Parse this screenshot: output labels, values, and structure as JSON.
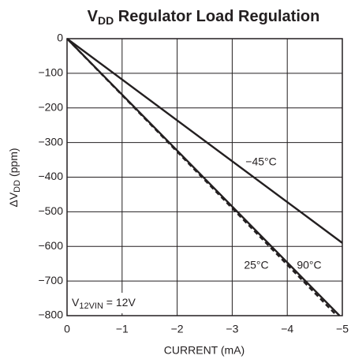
{
  "chart_data": {
    "type": "line",
    "title": [
      "V",
      "DD",
      " Regulator Load Regulation"
    ],
    "ylabel": [
      "ΔV",
      "DD",
      " (ppm)"
    ],
    "xlabel": "CURRENT (mA)",
    "annotation": [
      "V",
      "12VIN",
      " = 12V"
    ],
    "xlim": [
      0,
      -5
    ],
    "xticks": [
      0,
      {
        "value": -1,
        "label": "−1"
      },
      {
        "value": -2,
        "label": "−2"
      },
      {
        "value": -3,
        "label": "−3"
      },
      {
        "value": -4,
        "label": "−4"
      },
      {
        "value": -5,
        "label": "−5"
      }
    ],
    "ylim": [
      0,
      -800
    ],
    "yticks": [
      0,
      {
        "value": -100,
        "label": "−100"
      },
      {
        "value": -200,
        "label": "−200"
      },
      {
        "value": -300,
        "label": "−300"
      },
      {
        "value": -400,
        "label": "−400"
      },
      {
        "value": -500,
        "label": "−500"
      },
      {
        "value": -600,
        "label": "−600"
      },
      {
        "value": -700,
        "label": "−700"
      },
      {
        "value": -800,
        "label": "−800"
      }
    ],
    "grid": true,
    "series": [
      {
        "name": "−45°C",
        "color": "#231f20",
        "dash": false,
        "x": [
          0,
          -5
        ],
        "values": [
          0,
          -590
        ]
      },
      {
        "name": "25°C",
        "color": "#231f20",
        "dash": false,
        "x": [
          0,
          -4.95
        ],
        "values": [
          0,
          -800
        ]
      },
      {
        "name": "90°C",
        "color": "#231f20",
        "dash": true,
        "x": [
          0,
          -4.9
        ],
        "values": [
          0,
          -800
        ]
      }
    ]
  }
}
